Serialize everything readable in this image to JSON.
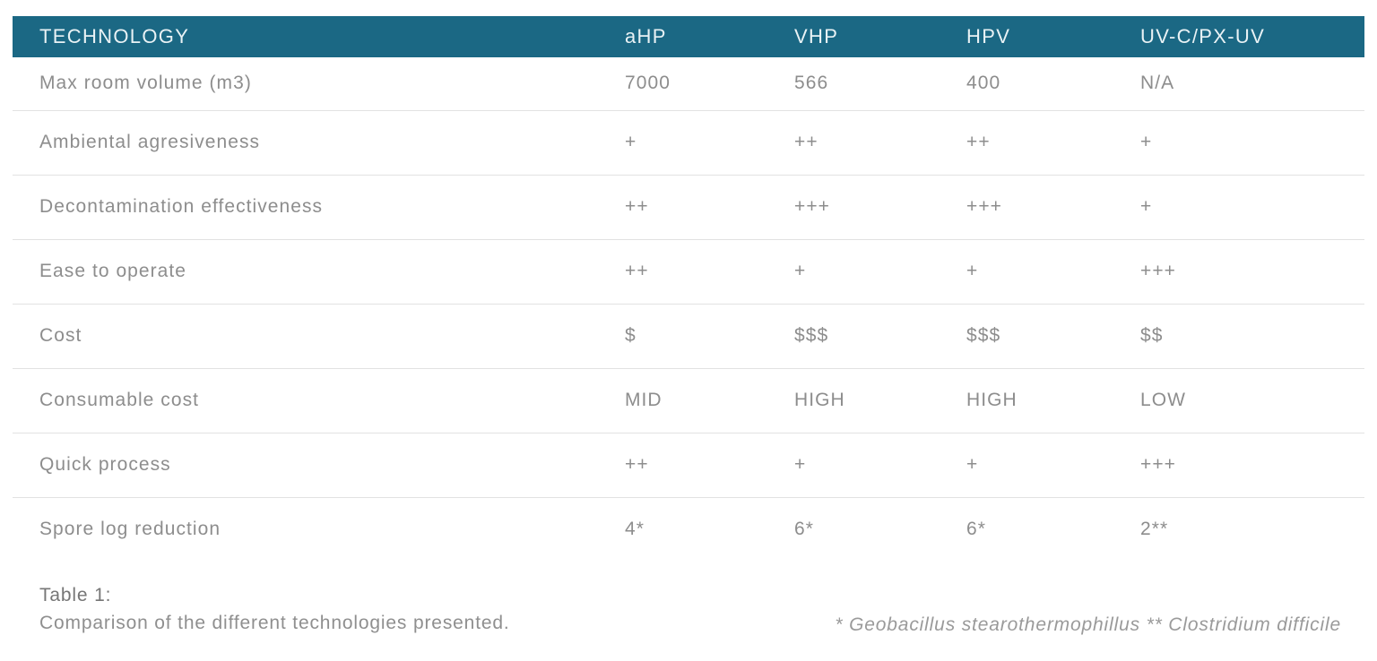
{
  "table": {
    "header": {
      "label": "TECHNOLOGY",
      "columns": [
        "aHP",
        "VHP",
        "HPV",
        "UV-C/PX-UV"
      ]
    },
    "rows": [
      {
        "label": "Max room volume (m3)",
        "values": [
          "7000",
          "566",
          "400",
          "N/A"
        ]
      },
      {
        "label": "Ambiental agresiveness",
        "values": [
          "+",
          "++",
          "++",
          "+"
        ]
      },
      {
        "label": "Decontamination effectiveness",
        "values": [
          "++",
          "+++",
          "+++",
          "+"
        ]
      },
      {
        "label": "Ease to operate",
        "values": [
          "++",
          "+",
          "+",
          "+++"
        ]
      },
      {
        "label": "Cost",
        "values": [
          "$",
          "$$$",
          "$$$",
          "$$"
        ]
      },
      {
        "label": "Consumable cost",
        "values": [
          "MID",
          "HIGH",
          "HIGH",
          "LOW"
        ]
      },
      {
        "label": "Quick process",
        "values": [
          "++",
          "+",
          "+",
          "+++"
        ]
      },
      {
        "label": "Spore log reduction",
        "values": [
          "4*",
          "6*",
          "6*",
          "2**"
        ]
      }
    ]
  },
  "caption": {
    "title": "Table 1:",
    "description": "Comparison of the different technologies presented."
  },
  "footnote": "* Geobacillus stearothermophillus ** Clostridium difficile",
  "colors": {
    "header_bg": "#1b6884",
    "header_text": "#e9f2f5",
    "row_text": "#8d8d8d",
    "divider": "#e2e2e2",
    "background": "#ffffff",
    "caption_title": "#767676",
    "caption_text": "#8f8f8f",
    "footnote_text": "#9a9a9a"
  }
}
